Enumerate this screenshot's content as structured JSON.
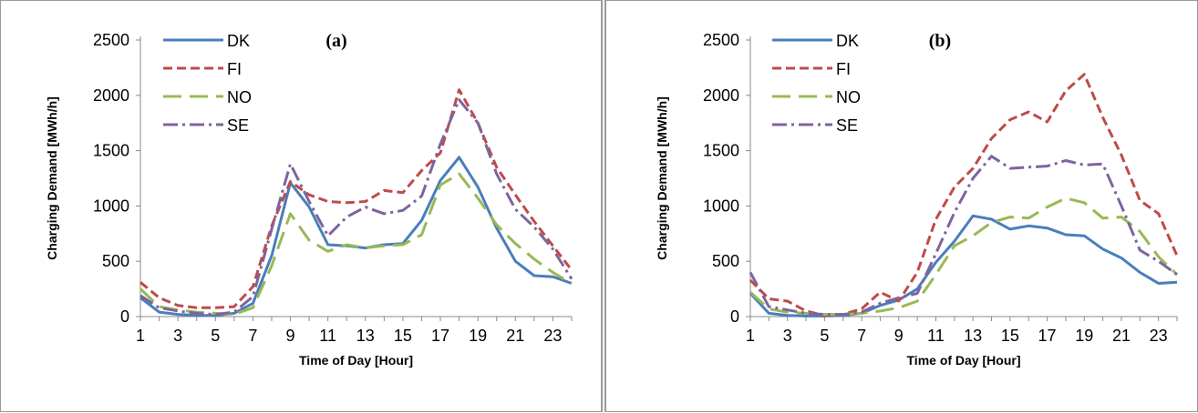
{
  "chart_data": [
    {
      "type": "line",
      "title": "(a)",
      "xlabel": "Time of Day [Hour]",
      "ylabel": "Charging Demand [MWh/h]",
      "x": [
        1,
        2,
        3,
        4,
        5,
        6,
        7,
        8,
        9,
        10,
        11,
        12,
        13,
        14,
        15,
        16,
        17,
        18,
        19,
        20,
        21,
        22,
        23,
        24
      ],
      "xticks": [
        1,
        3,
        5,
        7,
        9,
        11,
        13,
        15,
        17,
        19,
        21,
        23
      ],
      "xlim": [
        1,
        24
      ],
      "ylim": [
        0,
        2500
      ],
      "yticks": [
        0,
        500,
        1000,
        1500,
        2000,
        2500
      ],
      "legend": "top-left",
      "series": [
        {
          "name": "DK",
          "color": "#4a7ebb",
          "dash": "solid",
          "values": [
            170,
            40,
            20,
            10,
            10,
            30,
            120,
            550,
            1210,
            990,
            650,
            640,
            620,
            650,
            660,
            870,
            1230,
            1440,
            1170,
            800,
            500,
            370,
            360,
            300
          ]
        },
        {
          "name": "FI",
          "color": "#be4b48",
          "dash": "dashed",
          "values": [
            310,
            170,
            100,
            80,
            80,
            90,
            270,
            820,
            1220,
            1100,
            1040,
            1030,
            1040,
            1140,
            1120,
            1320,
            1480,
            2050,
            1750,
            1350,
            1100,
            860,
            640,
            420
          ]
        },
        {
          "name": "NO",
          "color": "#98b954",
          "dash": "longdash",
          "values": [
            250,
            90,
            60,
            40,
            30,
            20,
            80,
            460,
            930,
            690,
            590,
            650,
            620,
            640,
            650,
            740,
            1190,
            1290,
            1070,
            830,
            660,
            520,
            400,
            300
          ]
        },
        {
          "name": "SE",
          "color": "#7e649e",
          "dash": "dashdot",
          "values": [
            190,
            80,
            50,
            30,
            20,
            40,
            180,
            790,
            1380,
            1040,
            730,
            900,
            990,
            930,
            960,
            1090,
            1560,
            1960,
            1750,
            1290,
            970,
            810,
            610,
            340
          ]
        }
      ]
    },
    {
      "type": "line",
      "title": "(b)",
      "xlabel": "Time of Day [Hour]",
      "ylabel": "Charging Demand [MWh/h]",
      "x": [
        1,
        2,
        3,
        4,
        5,
        6,
        7,
        8,
        9,
        10,
        11,
        12,
        13,
        14,
        15,
        16,
        17,
        18,
        19,
        20,
        21,
        22,
        23,
        24
      ],
      "xticks": [
        1,
        3,
        5,
        7,
        9,
        11,
        13,
        15,
        17,
        19,
        21,
        23
      ],
      "xlim": [
        1,
        24
      ],
      "ylim": [
        0,
        2500
      ],
      "yticks": [
        0,
        500,
        1000,
        1500,
        2000,
        2500
      ],
      "legend": "top-left",
      "series": [
        {
          "name": "DK",
          "color": "#4a7ebb",
          "dash": "solid",
          "values": [
            210,
            30,
            10,
            5,
            5,
            10,
            30,
            100,
            150,
            250,
            490,
            680,
            910,
            880,
            790,
            820,
            800,
            740,
            730,
            610,
            530,
            400,
            300,
            310
          ]
        },
        {
          "name": "FI",
          "color": "#be4b48",
          "dash": "dashed",
          "values": [
            330,
            160,
            140,
            50,
            10,
            20,
            70,
            220,
            140,
            400,
            880,
            1170,
            1340,
            1610,
            1780,
            1850,
            1760,
            2040,
            2190,
            1800,
            1460,
            1050,
            930,
            550
          ]
        },
        {
          "name": "NO",
          "color": "#98b954",
          "dash": "longdash",
          "values": [
            220,
            70,
            40,
            30,
            20,
            20,
            30,
            50,
            80,
            140,
            380,
            640,
            730,
            850,
            900,
            890,
            990,
            1070,
            1030,
            890,
            900,
            770,
            540,
            380
          ]
        },
        {
          "name": "SE",
          "color": "#7e649e",
          "dash": "dashdot",
          "values": [
            400,
            90,
            60,
            30,
            20,
            20,
            40,
            120,
            170,
            210,
            570,
            940,
            1250,
            1450,
            1340,
            1350,
            1360,
            1410,
            1370,
            1380,
            1000,
            600,
            500,
            380
          ]
        }
      ]
    }
  ]
}
